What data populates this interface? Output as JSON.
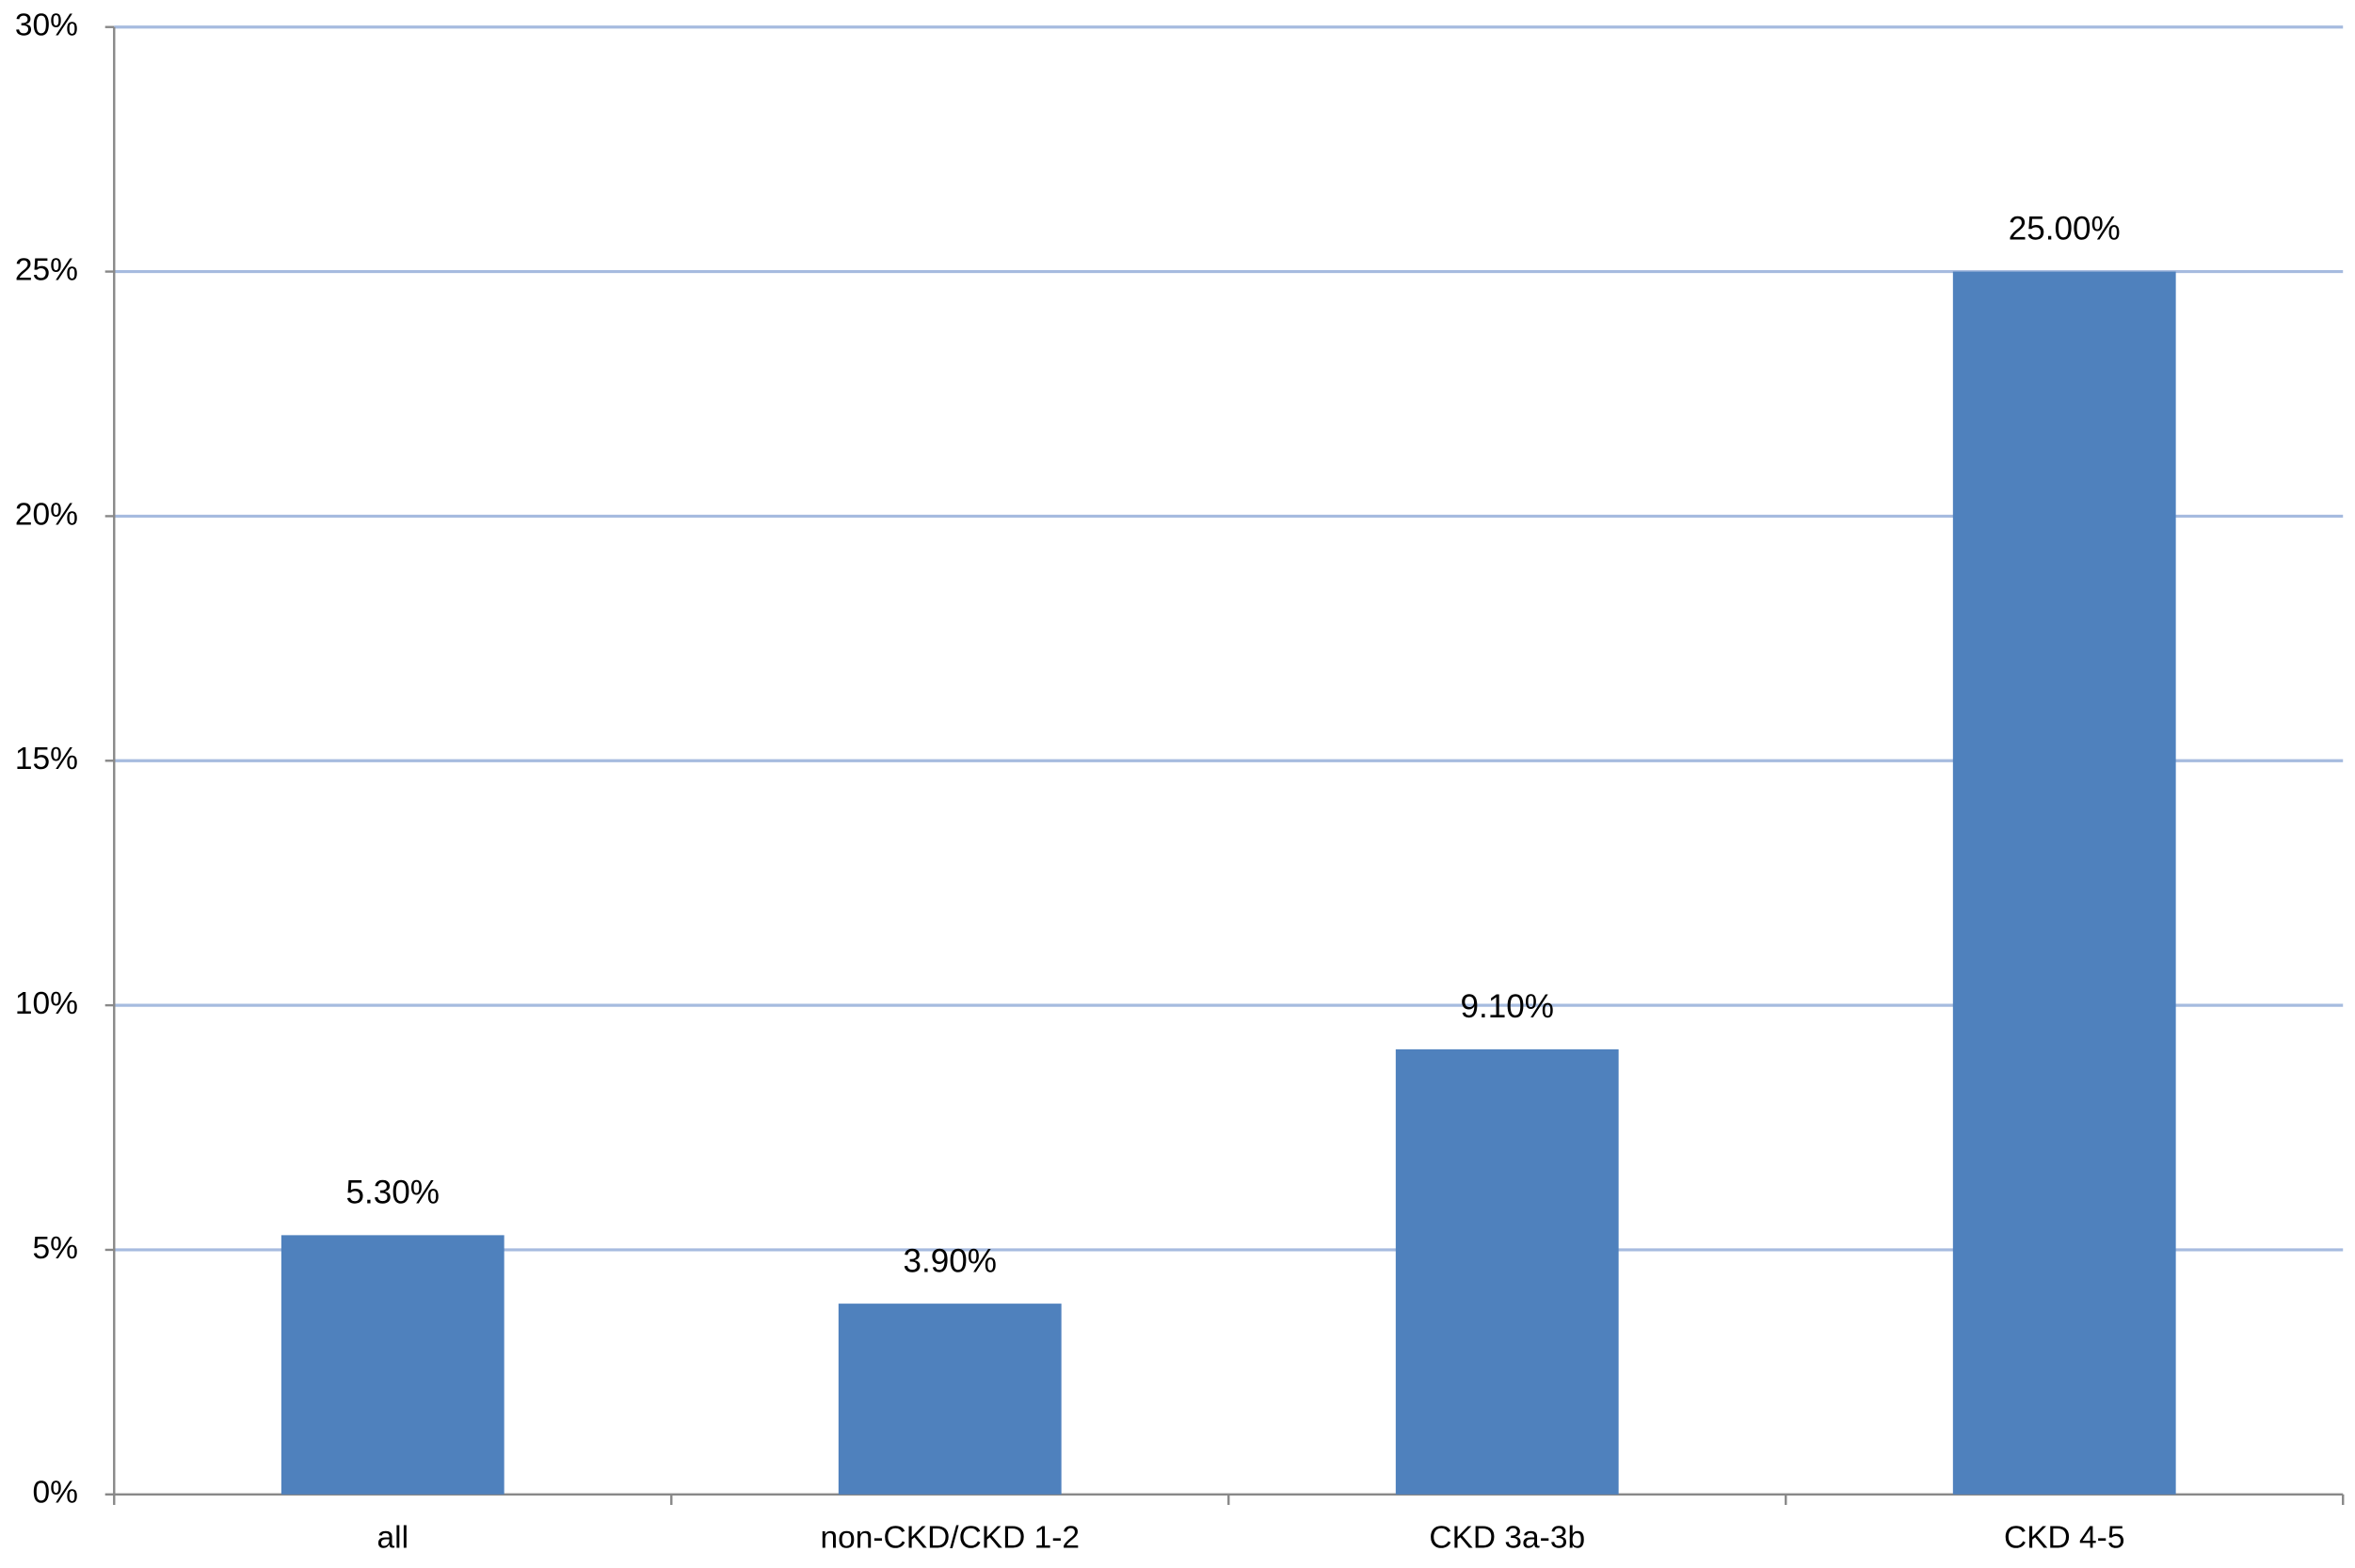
{
  "chart_data": {
    "type": "bar",
    "categories": [
      "all",
      "non-CKD/CKD 1-2",
      "CKD 3a-3b",
      "CKD 4-5"
    ],
    "values": [
      5.3,
      3.9,
      9.1,
      25
    ],
    "value_labels": [
      "5.30%",
      "3.90%",
      "9.10%",
      "25.00%"
    ],
    "color": "#4f81bd",
    "ylim": [
      0,
      30
    ],
    "yticks": [
      {
        "value": 0,
        "label": "0%"
      },
      {
        "value": 5,
        "label": "5%"
      },
      {
        "value": 10,
        "label": "10%"
      },
      {
        "value": 15,
        "label": "15%"
      },
      {
        "value": 20,
        "label": "20%"
      },
      {
        "value": 25,
        "label": "25%"
      },
      {
        "value": 30,
        "label": "30%"
      }
    ],
    "grid": true
  }
}
